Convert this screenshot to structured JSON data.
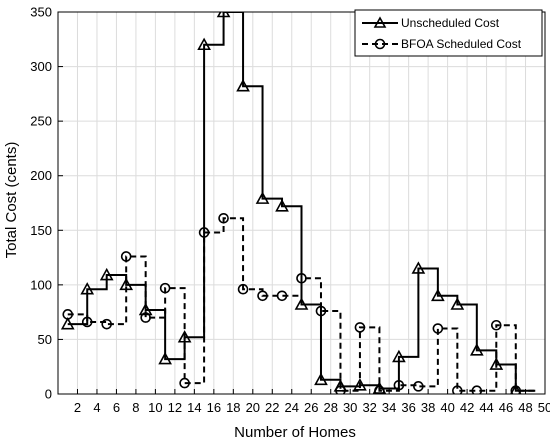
{
  "chart_data": {
    "type": "line",
    "step": "post",
    "xlabel": "Number of Homes",
    "ylabel": "Total Cost (cents)",
    "xlim": [
      0,
      50
    ],
    "ylim": [
      0,
      350
    ],
    "xticks": [
      2,
      4,
      6,
      8,
      10,
      12,
      14,
      16,
      18,
      20,
      22,
      24,
      26,
      28,
      30,
      32,
      34,
      36,
      38,
      40,
      42,
      44,
      46,
      48,
      50
    ],
    "yticks": [
      0,
      50,
      100,
      150,
      200,
      250,
      300,
      350
    ],
    "grid": true,
    "legend_position": "top-right",
    "x": [
      1,
      3,
      5,
      7,
      9,
      11,
      13,
      15,
      17,
      19,
      21,
      23,
      25,
      27,
      29,
      31,
      33,
      35,
      37,
      39,
      41,
      43,
      45,
      47
    ],
    "series": [
      {
        "name": "Unscheduled Cost",
        "marker": "triangle",
        "linestyle": "solid",
        "values": [
          64,
          96,
          109,
          100,
          77,
          32,
          52,
          320,
          350,
          282,
          179,
          172,
          82,
          13,
          7,
          8,
          5,
          34,
          115,
          90,
          82,
          40,
          27,
          3
        ]
      },
      {
        "name": "BFOA Scheduled Cost",
        "marker": "circle",
        "linestyle": "dashed",
        "values": [
          73,
          66,
          64,
          126,
          70,
          97,
          10,
          148,
          161,
          96,
          90,
          90,
          106,
          76,
          3,
          61,
          3,
          8,
          7,
          60,
          3,
          3,
          63,
          3
        ]
      }
    ]
  }
}
